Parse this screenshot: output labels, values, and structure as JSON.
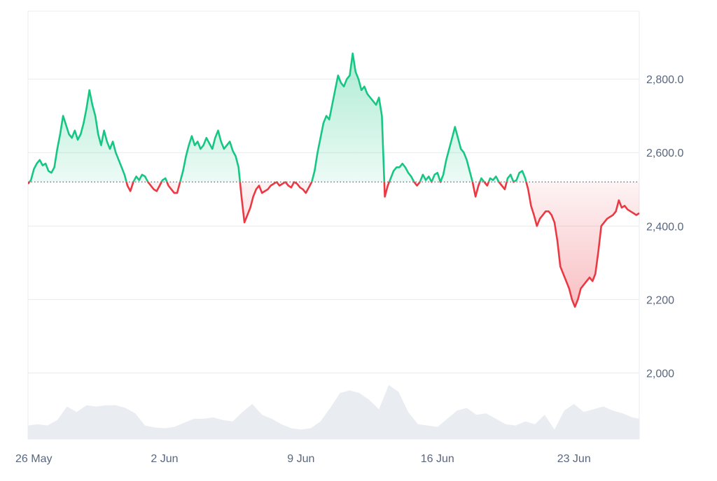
{
  "chart_data": {
    "type": "line",
    "baseline": 2520,
    "ylim": [
      1820,
      2985
    ],
    "y_ticks": [
      {
        "value": 2800,
        "label": "2,800.0"
      },
      {
        "value": 2600,
        "label": "2,600.0"
      },
      {
        "value": 2400,
        "label": "2,400.0"
      },
      {
        "value": 2200,
        "label": "2,200"
      },
      {
        "value": 2000,
        "label": "2,000"
      }
    ],
    "x_ticks": [
      {
        "day": 0,
        "label": "26 May"
      },
      {
        "day": 7,
        "label": "2 Jun"
      },
      {
        "day": 14,
        "label": "9 Jun"
      },
      {
        "day": 21,
        "label": "16 Jun"
      },
      {
        "day": 28,
        "label": "23 Jun"
      }
    ],
    "grid": true,
    "legend": "none",
    "colors": {
      "up": "#16c784",
      "down": "#ea3943",
      "up_fill": "#16c784",
      "down_fill": "#ea3943",
      "grid": "#e8ebee",
      "axis_text": "#58667e",
      "volume": "#e9edf1",
      "baseline": "#5a6275"
    },
    "price_series": [
      [
        0.0,
        2515
      ],
      [
        0.15,
        2525
      ],
      [
        0.3,
        2555
      ],
      [
        0.45,
        2570
      ],
      [
        0.6,
        2580
      ],
      [
        0.75,
        2565
      ],
      [
        0.9,
        2570
      ],
      [
        1.05,
        2550
      ],
      [
        1.2,
        2545
      ],
      [
        1.35,
        2560
      ],
      [
        1.5,
        2610
      ],
      [
        1.65,
        2650
      ],
      [
        1.8,
        2700
      ],
      [
        1.95,
        2675
      ],
      [
        2.1,
        2650
      ],
      [
        2.25,
        2640
      ],
      [
        2.4,
        2660
      ],
      [
        2.55,
        2635
      ],
      [
        2.7,
        2650
      ],
      [
        2.85,
        2680
      ],
      [
        3.0,
        2720
      ],
      [
        3.15,
        2770
      ],
      [
        3.3,
        2730
      ],
      [
        3.45,
        2700
      ],
      [
        3.6,
        2650
      ],
      [
        3.75,
        2620
      ],
      [
        3.9,
        2660
      ],
      [
        4.05,
        2630
      ],
      [
        4.2,
        2610
      ],
      [
        4.35,
        2630
      ],
      [
        4.5,
        2600
      ],
      [
        4.65,
        2580
      ],
      [
        4.8,
        2560
      ],
      [
        4.95,
        2540
      ],
      [
        5.1,
        2510
      ],
      [
        5.25,
        2495
      ],
      [
        5.4,
        2520
      ],
      [
        5.55,
        2535
      ],
      [
        5.7,
        2525
      ],
      [
        5.85,
        2540
      ],
      [
        6.0,
        2535
      ],
      [
        6.15,
        2520
      ],
      [
        6.3,
        2510
      ],
      [
        6.45,
        2500
      ],
      [
        6.6,
        2495
      ],
      [
        6.75,
        2510
      ],
      [
        6.9,
        2525
      ],
      [
        7.05,
        2530
      ],
      [
        7.2,
        2510
      ],
      [
        7.35,
        2500
      ],
      [
        7.5,
        2490
      ],
      [
        7.65,
        2490
      ],
      [
        7.8,
        2520
      ],
      [
        7.95,
        2550
      ],
      [
        8.1,
        2590
      ],
      [
        8.25,
        2620
      ],
      [
        8.4,
        2645
      ],
      [
        8.55,
        2620
      ],
      [
        8.7,
        2630
      ],
      [
        8.85,
        2610
      ],
      [
        9.0,
        2620
      ],
      [
        9.15,
        2640
      ],
      [
        9.3,
        2625
      ],
      [
        9.45,
        2610
      ],
      [
        9.6,
        2640
      ],
      [
        9.75,
        2660
      ],
      [
        9.9,
        2630
      ],
      [
        10.05,
        2610
      ],
      [
        10.2,
        2620
      ],
      [
        10.35,
        2630
      ],
      [
        10.5,
        2605
      ],
      [
        10.65,
        2590
      ],
      [
        10.8,
        2560
      ],
      [
        10.95,
        2480
      ],
      [
        11.1,
        2410
      ],
      [
        11.25,
        2430
      ],
      [
        11.4,
        2450
      ],
      [
        11.55,
        2480
      ],
      [
        11.7,
        2500
      ],
      [
        11.85,
        2510
      ],
      [
        12.0,
        2490
      ],
      [
        12.15,
        2495
      ],
      [
        12.3,
        2500
      ],
      [
        12.45,
        2510
      ],
      [
        12.6,
        2515
      ],
      [
        12.75,
        2520
      ],
      [
        12.9,
        2510
      ],
      [
        13.05,
        2515
      ],
      [
        13.2,
        2520
      ],
      [
        13.35,
        2510
      ],
      [
        13.5,
        2505
      ],
      [
        13.65,
        2520
      ],
      [
        13.8,
        2515
      ],
      [
        13.95,
        2505
      ],
      [
        14.1,
        2500
      ],
      [
        14.25,
        2490
      ],
      [
        14.4,
        2505
      ],
      [
        14.55,
        2520
      ],
      [
        14.7,
        2550
      ],
      [
        14.85,
        2600
      ],
      [
        15.0,
        2640
      ],
      [
        15.15,
        2680
      ],
      [
        15.3,
        2700
      ],
      [
        15.45,
        2690
      ],
      [
        15.6,
        2730
      ],
      [
        15.75,
        2770
      ],
      [
        15.9,
        2810
      ],
      [
        16.05,
        2790
      ],
      [
        16.2,
        2780
      ],
      [
        16.35,
        2800
      ],
      [
        16.5,
        2810
      ],
      [
        16.65,
        2870
      ],
      [
        16.8,
        2820
      ],
      [
        16.95,
        2800
      ],
      [
        17.1,
        2770
      ],
      [
        17.25,
        2780
      ],
      [
        17.4,
        2760
      ],
      [
        17.55,
        2750
      ],
      [
        17.7,
        2740
      ],
      [
        17.85,
        2730
      ],
      [
        18.0,
        2750
      ],
      [
        18.15,
        2700
      ],
      [
        18.3,
        2480
      ],
      [
        18.45,
        2510
      ],
      [
        18.6,
        2530
      ],
      [
        18.75,
        2550
      ],
      [
        18.9,
        2560
      ],
      [
        19.05,
        2560
      ],
      [
        19.2,
        2570
      ],
      [
        19.35,
        2560
      ],
      [
        19.5,
        2545
      ],
      [
        19.65,
        2535
      ],
      [
        19.8,
        2520
      ],
      [
        19.95,
        2510
      ],
      [
        20.1,
        2520
      ],
      [
        20.25,
        2540
      ],
      [
        20.4,
        2525
      ],
      [
        20.55,
        2535
      ],
      [
        20.7,
        2520
      ],
      [
        20.85,
        2540
      ],
      [
        21.0,
        2545
      ],
      [
        21.15,
        2520
      ],
      [
        21.3,
        2540
      ],
      [
        21.45,
        2580
      ],
      [
        21.6,
        2610
      ],
      [
        21.75,
        2640
      ],
      [
        21.9,
        2670
      ],
      [
        22.05,
        2640
      ],
      [
        22.2,
        2610
      ],
      [
        22.35,
        2600
      ],
      [
        22.5,
        2580
      ],
      [
        22.65,
        2550
      ],
      [
        22.8,
        2520
      ],
      [
        22.95,
        2480
      ],
      [
        23.1,
        2510
      ],
      [
        23.25,
        2530
      ],
      [
        23.4,
        2520
      ],
      [
        23.55,
        2510
      ],
      [
        23.7,
        2530
      ],
      [
        23.85,
        2525
      ],
      [
        24.0,
        2535
      ],
      [
        24.15,
        2520
      ],
      [
        24.3,
        2510
      ],
      [
        24.45,
        2500
      ],
      [
        24.6,
        2530
      ],
      [
        24.75,
        2540
      ],
      [
        24.9,
        2520
      ],
      [
        25.05,
        2525
      ],
      [
        25.2,
        2545
      ],
      [
        25.35,
        2550
      ],
      [
        25.5,
        2530
      ],
      [
        25.65,
        2500
      ],
      [
        25.8,
        2455
      ],
      [
        25.95,
        2430
      ],
      [
        26.1,
        2400
      ],
      [
        26.25,
        2420
      ],
      [
        26.4,
        2430
      ],
      [
        26.55,
        2440
      ],
      [
        26.7,
        2440
      ],
      [
        26.85,
        2430
      ],
      [
        27.0,
        2410
      ],
      [
        27.15,
        2360
      ],
      [
        27.3,
        2290
      ],
      [
        27.45,
        2270
      ],
      [
        27.6,
        2250
      ],
      [
        27.75,
        2230
      ],
      [
        27.9,
        2200
      ],
      [
        28.05,
        2180
      ],
      [
        28.2,
        2200
      ],
      [
        28.35,
        2230
      ],
      [
        28.5,
        2240
      ],
      [
        28.65,
        2250
      ],
      [
        28.8,
        2260
      ],
      [
        28.95,
        2250
      ],
      [
        29.1,
        2270
      ],
      [
        29.25,
        2330
      ],
      [
        29.4,
        2400
      ],
      [
        29.55,
        2410
      ],
      [
        29.7,
        2420
      ],
      [
        29.85,
        2425
      ],
      [
        30.0,
        2430
      ],
      [
        30.15,
        2440
      ],
      [
        30.3,
        2470
      ],
      [
        30.45,
        2450
      ],
      [
        30.6,
        2455
      ],
      [
        30.75,
        2445
      ],
      [
        30.9,
        2440
      ],
      [
        31.05,
        2435
      ],
      [
        31.2,
        2430
      ],
      [
        31.35,
        2435
      ]
    ],
    "volume_series": [
      [
        0.0,
        0.2
      ],
      [
        0.5,
        0.22
      ],
      [
        1.0,
        0.2
      ],
      [
        1.5,
        0.28
      ],
      [
        2.0,
        0.48
      ],
      [
        2.5,
        0.4
      ],
      [
        3.0,
        0.5
      ],
      [
        3.5,
        0.48
      ],
      [
        4.0,
        0.5
      ],
      [
        4.5,
        0.5
      ],
      [
        5.0,
        0.46
      ],
      [
        5.5,
        0.38
      ],
      [
        6.0,
        0.2
      ],
      [
        6.5,
        0.17
      ],
      [
        7.0,
        0.16
      ],
      [
        7.5,
        0.18
      ],
      [
        8.0,
        0.24
      ],
      [
        8.5,
        0.3
      ],
      [
        9.0,
        0.3
      ],
      [
        9.5,
        0.32
      ],
      [
        10.0,
        0.28
      ],
      [
        10.5,
        0.26
      ],
      [
        11.0,
        0.4
      ],
      [
        11.5,
        0.52
      ],
      [
        12.0,
        0.36
      ],
      [
        12.5,
        0.3
      ],
      [
        13.0,
        0.22
      ],
      [
        13.5,
        0.16
      ],
      [
        14.0,
        0.14
      ],
      [
        14.5,
        0.16
      ],
      [
        15.0,
        0.26
      ],
      [
        15.5,
        0.46
      ],
      [
        16.0,
        0.68
      ],
      [
        16.5,
        0.72
      ],
      [
        17.0,
        0.68
      ],
      [
        17.5,
        0.58
      ],
      [
        18.0,
        0.44
      ],
      [
        18.5,
        0.8
      ],
      [
        19.0,
        0.7
      ],
      [
        19.5,
        0.4
      ],
      [
        20.0,
        0.22
      ],
      [
        20.5,
        0.2
      ],
      [
        21.0,
        0.18
      ],
      [
        21.5,
        0.3
      ],
      [
        22.0,
        0.42
      ],
      [
        22.5,
        0.46
      ],
      [
        23.0,
        0.36
      ],
      [
        23.5,
        0.38
      ],
      [
        24.0,
        0.3
      ],
      [
        24.5,
        0.22
      ],
      [
        25.0,
        0.2
      ],
      [
        25.5,
        0.26
      ],
      [
        26.0,
        0.22
      ],
      [
        26.5,
        0.36
      ],
      [
        27.0,
        0.14
      ],
      [
        27.5,
        0.42
      ],
      [
        28.0,
        0.52
      ],
      [
        28.5,
        0.4
      ],
      [
        29.0,
        0.44
      ],
      [
        29.5,
        0.48
      ],
      [
        30.0,
        0.42
      ],
      [
        30.5,
        0.38
      ],
      [
        31.0,
        0.32
      ],
      [
        31.35,
        0.3
      ]
    ]
  }
}
